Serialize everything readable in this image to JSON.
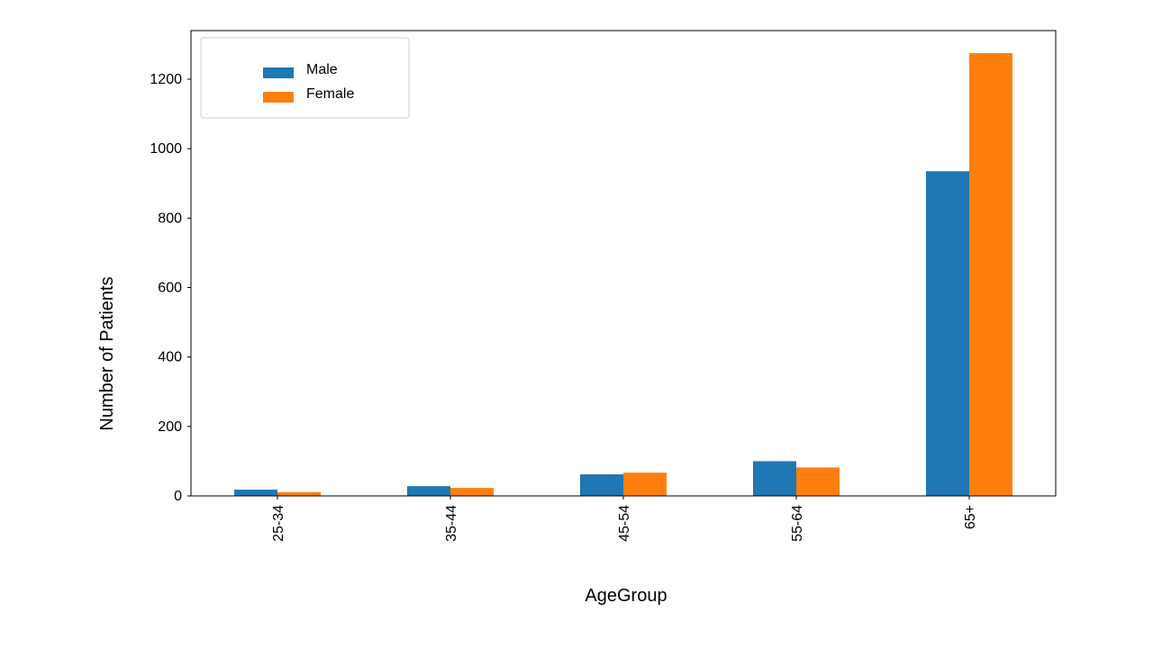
{
  "chart_data": {
    "type": "bar",
    "categories": [
      "25-34",
      "35-44",
      "45-54",
      "55-64",
      "65+"
    ],
    "series": [
      {
        "name": "Male",
        "values": [
          18,
          28,
          62,
          100,
          935
        ],
        "color": "#1f77b4"
      },
      {
        "name": "Female",
        "values": [
          11,
          23,
          67,
          82,
          1275
        ],
        "color": "#ff7f0e"
      }
    ],
    "xlabel": "AgeGroup",
    "ylabel": "Number of Patients",
    "ylim": [
      0,
      1340
    ],
    "yticks": [
      0,
      200,
      400,
      600,
      800,
      1000,
      1200
    ],
    "xtick_rotation": "vertical",
    "legend_placement": "upper-left",
    "grid": false
  }
}
